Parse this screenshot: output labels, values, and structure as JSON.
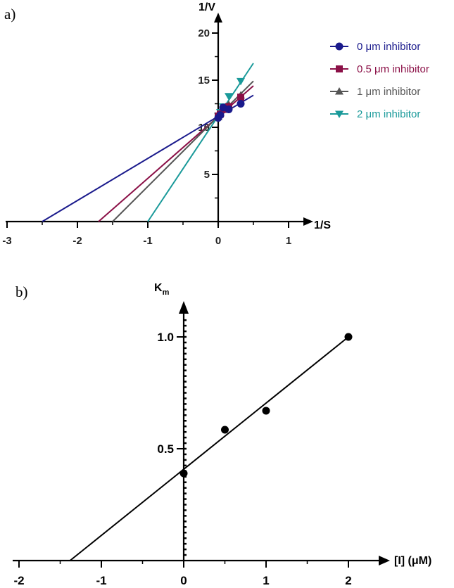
{
  "chart_data": [
    {
      "panel_label": "a)",
      "type": "line",
      "xlabel": "1/S",
      "ylabel": "1/V",
      "xlim": [
        -3,
        1
      ],
      "ylim": [
        0,
        20
      ],
      "xticks": [
        "-3",
        "-2",
        "-1",
        "0",
        "1"
      ],
      "yticks": [
        "5",
        "10",
        "15",
        "20"
      ],
      "legend_position": "top-right",
      "series": [
        {
          "name": "0 μm inhibitor",
          "color": "#1a1a8c",
          "marker": "circle",
          "line": {
            "x": [
              -2.5,
              0.5
            ],
            "y": [
              0,
              13.4
            ]
          },
          "points": {
            "x": [
              0,
              0.03,
              0.07,
              0.15,
              0.32
            ],
            "y": [
              11.0,
              11.3,
              12.1,
              11.9,
              12.5
            ]
          }
        },
        {
          "name": "0.5 μm inhibitor",
          "color": "#8b1047",
          "marker": "square",
          "line": {
            "x": [
              -1.7,
              0.5
            ],
            "y": [
              0,
              14.4
            ]
          },
          "points": {
            "x": [
              0,
              0.03,
              0.07,
              0.15,
              0.32
            ],
            "y": [
              11.2,
              11.4,
              11.9,
              12.2,
              13.2
            ]
          }
        },
        {
          "name": "1 μm inhibitor",
          "color": "#555555",
          "marker": "triangle-up",
          "line": {
            "x": [
              -1.5,
              0.5
            ],
            "y": [
              0,
              14.9
            ]
          },
          "points": {
            "x": [
              0,
              0.03,
              0.07,
              0.15,
              0.32
            ],
            "y": [
              11.1,
              11.5,
              12.0,
              12.4,
              13.4
            ]
          }
        },
        {
          "name": "2 μm inhibitor",
          "color": "#1a9a9a",
          "marker": "triangle-down",
          "line": {
            "x": [
              -1.0,
              0.5
            ],
            "y": [
              0,
              16.8
            ]
          },
          "points": {
            "x": [
              0,
              0.03,
              0.07,
              0.15,
              0.32
            ],
            "y": [
              11.2,
              11.6,
              12.2,
              13.3,
              14.9
            ]
          }
        }
      ]
    },
    {
      "panel_label": "b)",
      "type": "scatter",
      "xlabel": "[I] (μM)",
      "ylabel_main": "K",
      "ylabel_sub": "m",
      "xlim": [
        -2,
        2.3
      ],
      "ylim": [
        0,
        1.1
      ],
      "xticks": [
        "-2",
        "-1",
        "0",
        "1",
        "2"
      ],
      "yticks": [
        "0.5",
        "1.0"
      ],
      "series": [
        {
          "name": "",
          "color": "#000000",
          "points": {
            "x": [
              0,
              0.5,
              1.0,
              2.0
            ],
            "y": [
              0.39,
              0.585,
              0.67,
              1.0
            ]
          },
          "fit_line": {
            "x": [
              -1.38,
              2.0
            ],
            "y": [
              0,
              1.0
            ]
          }
        }
      ]
    }
  ]
}
